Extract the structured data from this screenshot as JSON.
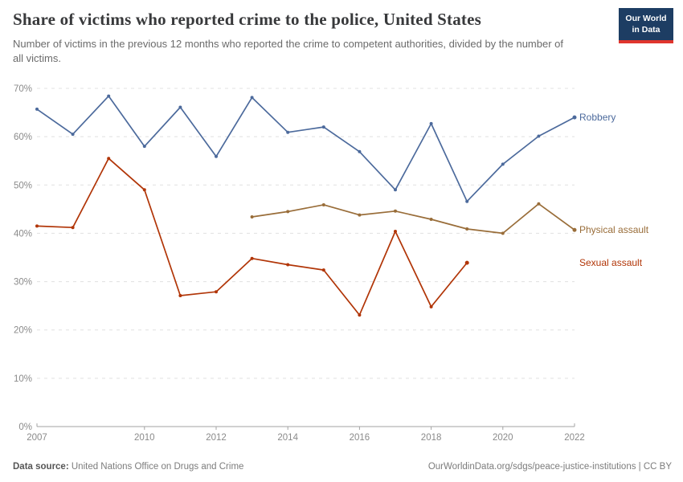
{
  "header": {
    "title": "Share of victims who reported crime to the police, United States",
    "subtitle": "Number of victims in the previous 12 months who reported the crime to competent authorities, divided by the number of all victims.",
    "logo": {
      "line1": "Our World",
      "line2": "in Data",
      "bg_color": "#1d3d63",
      "stripe_color": "#e0352d"
    }
  },
  "chart_data": {
    "type": "line",
    "title": "Share of victims who reported crime to the police, United States",
    "xlabel": "",
    "ylabel": "",
    "xlim": [
      2007,
      2022
    ],
    "ylim": [
      0,
      70
    ],
    "grid": "horizontal-dashed",
    "legend_position": "end-of-line-labels",
    "x_ticks": [
      2007,
      2010,
      2012,
      2014,
      2016,
      2018,
      2020,
      2022
    ],
    "x_tick_labels": [
      "2007",
      "2010",
      "2012",
      "2014",
      "2016",
      "2018",
      "2020",
      "2022"
    ],
    "y_ticks": [
      0,
      10,
      20,
      30,
      40,
      50,
      60,
      70
    ],
    "y_tick_labels": [
      "0%",
      "10%",
      "20%",
      "30%",
      "40%",
      "50%",
      "60%",
      "70%"
    ],
    "series": [
      {
        "name": "Robbery",
        "color": "#4C6A9C",
        "x": [
          2007,
          2008,
          2009,
          2010,
          2011,
          2012,
          2013,
          2014,
          2015,
          2016,
          2017,
          2018,
          2019,
          2020,
          2021,
          2022
        ],
        "values": [
          65.7,
          60.5,
          68.4,
          58.0,
          66.1,
          55.9,
          68.1,
          60.9,
          62.0,
          56.9,
          49.0,
          62.7,
          46.6,
          54.3,
          60.1,
          64.0
        ]
      },
      {
        "name": "Physical assault",
        "color": "#996D39",
        "x": [
          2013,
          2014,
          2015,
          2016,
          2017,
          2018,
          2019,
          2020,
          2021,
          2022
        ],
        "values": [
          43.4,
          44.5,
          45.9,
          43.8,
          44.6,
          42.9,
          40.9,
          40.0,
          46.1,
          40.7
        ]
      },
      {
        "name": "Sexual assault",
        "color": "#B13507",
        "x": [
          2007,
          2008,
          2009,
          2010,
          2011,
          2012,
          2013,
          2014,
          2015,
          2016,
          2017,
          2018,
          2019
        ],
        "values": [
          41.5,
          41.2,
          55.5,
          49.0,
          27.1,
          27.9,
          34.8,
          33.5,
          32.4,
          23.1,
          40.4,
          24.8,
          33.9
        ]
      }
    ],
    "axis_color": "#a3a3a3",
    "gridline_color": "#e0e0e0",
    "tick_label_color": "#8a8a8a"
  },
  "footer": {
    "source_label": "Data source:",
    "source_text": " United Nations Office on Drugs and Crime",
    "attribution": "OurWorldinData.org/sdgs/peace-justice-institutions | CC BY"
  }
}
